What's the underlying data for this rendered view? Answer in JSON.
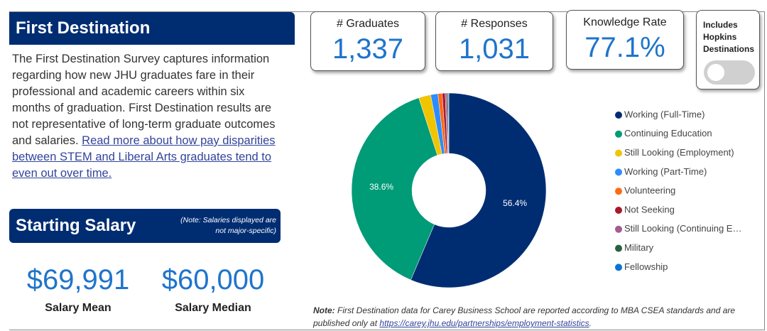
{
  "header": {
    "title": "First Destination"
  },
  "description": {
    "text": "The First Destination Survey captures information regarding how new JHU graduates fare in their professional and academic careers within six months of graduation. First Destination results are not representative of long-term graduate outcomes and salaries.",
    "link": "Read more about how pay disparities between STEM and Liberal Arts graduates tend to even out over time."
  },
  "kpis": [
    {
      "label": "# Graduates",
      "value": "1,337"
    },
    {
      "label": "# Responses",
      "value": "1,031"
    },
    {
      "label": "Knowledge Rate",
      "value": "77.1%"
    }
  ],
  "toggle": {
    "label": "Includes Hopkins Destinations",
    "on": false
  },
  "salary": {
    "title": "Starting Salary",
    "note": "(Note: Salaries displayed are not major-specific)",
    "stats": [
      {
        "value": "$69,991",
        "label": "Salary Mean"
      },
      {
        "value": "$60,000",
        "label": "Salary Median"
      }
    ]
  },
  "note": {
    "lead": "Note:",
    "line1": "First Destination data for Carey Business School are reported according to MBA CSEA standards and are",
    "line2": "published only at",
    "link": "https://carey.jhu.edu/partnerships/employment-statistics",
    "end": "."
  },
  "chart_data": {
    "type": "donut",
    "categories": [
      "Working (Full-Time)",
      "Continuing Education",
      "Still Looking (Employment)",
      "Working (Part-Time)",
      "Volunteering",
      "Not Seeking",
      "Still Looking (Continuing E…",
      "Military",
      "Fellowship"
    ],
    "values": [
      56.4,
      38.6,
      2.0,
      1.2,
      0.7,
      0.5,
      0.3,
      0.2,
      0.1
    ],
    "value_labels": [
      "56.4%",
      "38.6%",
      null,
      null,
      null,
      null,
      null,
      null,
      null
    ],
    "colors": [
      "#002d72",
      "#009b77",
      "#f1c400",
      "#2d8cff",
      "#ff6a13",
      "#a6192e",
      "#a45a95",
      "#286140",
      "#0a74d4"
    ],
    "legend": "right"
  }
}
